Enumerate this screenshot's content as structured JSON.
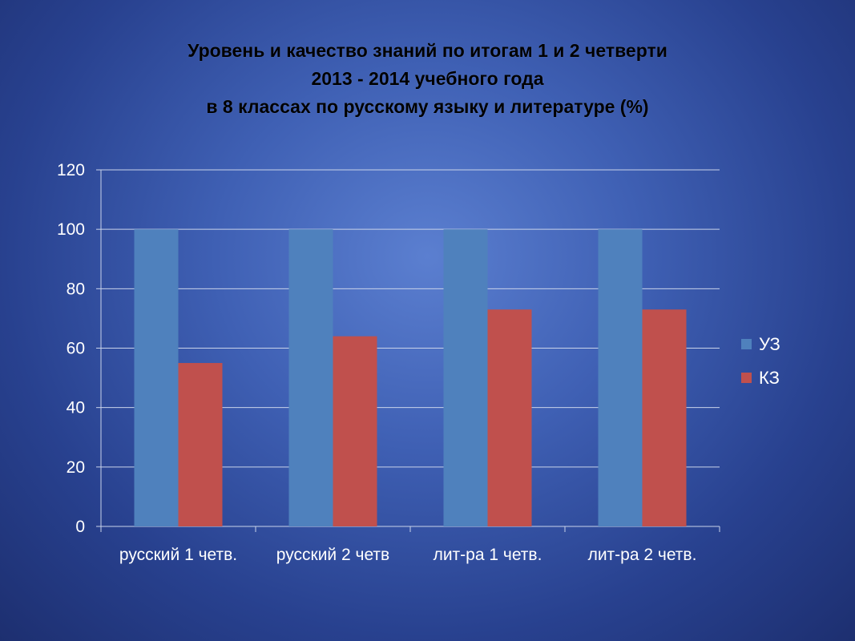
{
  "title": {
    "line1": "Уровень и качество знаний по итогам  1 и 2 четверти",
    "line2": "2013 - 2014 учебного  года",
    "line3": "в 8  классах по русскому языку и литературе (%)"
  },
  "colors": {
    "uz": "#4f81bd",
    "kz": "#c0504d",
    "grid": "#c9d3ea",
    "text": "#ffffff"
  },
  "chart_data": {
    "type": "bar",
    "categories": [
      "русский 1 четв.",
      "русский 2 четв",
      "лит-ра 1 четв.",
      "лит-ра 2 четв."
    ],
    "series": [
      {
        "name": "УЗ",
        "values": [
          100,
          100,
          100,
          100
        ]
      },
      {
        "name": "КЗ",
        "values": [
          55,
          64,
          73,
          73
        ]
      }
    ],
    "ylim": [
      0,
      120
    ],
    "yticks": [
      0,
      20,
      40,
      60,
      80,
      100,
      120
    ],
    "grid": true,
    "legend_position": "right"
  }
}
